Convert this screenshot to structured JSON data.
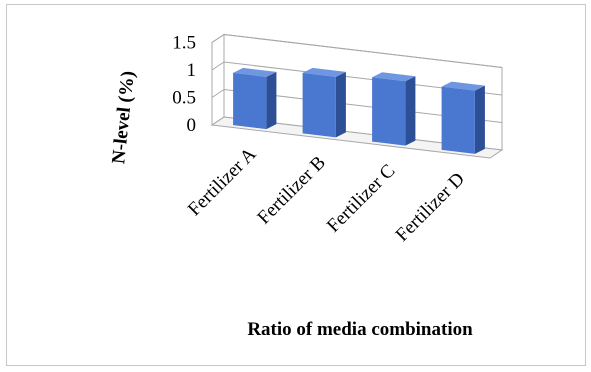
{
  "chart_data": {
    "type": "bar",
    "style": "3d-clustered-column",
    "categories": [
      "Fertilizer A",
      "Fertilizer B",
      "Fertilizer C",
      "Fertilizer D"
    ],
    "series": [
      {
        "values": [
          0.95,
          1.1,
          1.17,
          1.15
        ]
      }
    ],
    "title": "",
    "xlabel": "Ratio of media combination",
    "ylabel": "N-level (%)",
    "ylim": [
      0,
      1.5
    ],
    "yticks": [
      "0",
      "0.5",
      "1",
      "1.5"
    ],
    "grid": true,
    "legend": "none",
    "bar_color": "#4a78d0",
    "bar_side_color": "#2c4f96",
    "bar_top_color": "#6f96e0"
  }
}
